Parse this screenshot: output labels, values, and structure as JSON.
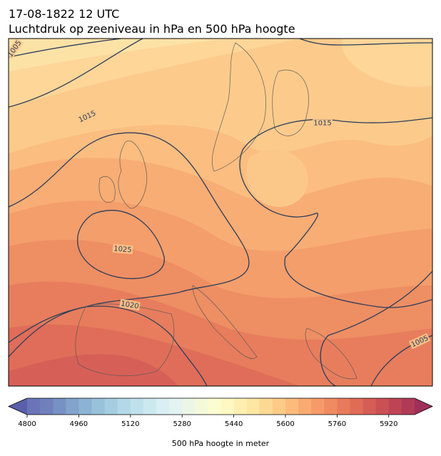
{
  "header": {
    "title_line1": "17-08-1822 12 UTC",
    "title_line2": "Luchtdruk op zeeniveau in hPa en 500 hPa hoogte"
  },
  "map": {
    "contour_labels": [
      1005,
      1015,
      1015,
      1025,
      1020,
      1005
    ]
  },
  "colorbar": {
    "label": "500 hPa hoogte in meter",
    "lim": [
      4800,
      6000
    ],
    "ticks": [
      4800,
      4960,
      5120,
      5280,
      5440,
      5600,
      5760,
      5920
    ],
    "colors": [
      "#6b74b8",
      "#6f80bc",
      "#7891c4",
      "#82a3cb",
      "#8cb3d3",
      "#98c1da",
      "#a5cde1",
      "#b3d8e7",
      "#c0e1ec",
      "#cde9f0",
      "#d9eff3",
      "#e3f3f1",
      "#ecf6e6",
      "#f4f9da",
      "#fbfcd0",
      "#fff8c2",
      "#fff0b2",
      "#fee6a3",
      "#fed994",
      "#fdcb87",
      "#fcbb7b",
      "#f9ab71",
      "#f59a68",
      "#f08a61",
      "#e97a5b",
      "#e06b57",
      "#d65d55",
      "#cb5054",
      "#be4455",
      "#b03a57"
    ],
    "extend_colors": [
      "#5a5fab",
      "#a0305a"
    ]
  }
}
